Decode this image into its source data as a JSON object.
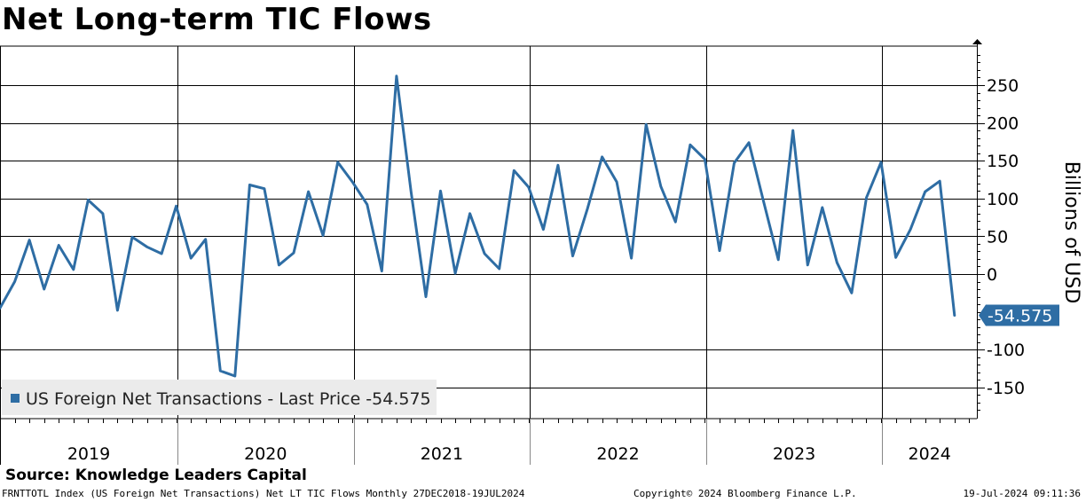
{
  "header": {
    "title": "Net Long-term TIC Flows"
  },
  "footer": {
    "source": "Source: Knowledge Leaders Capital",
    "ticker_info": "FRNTTOTL Index (US Foreign Net Transactions) Net LT TIC Flows  Monthly 27DEC2018-19JUL2024",
    "copyright": "Copyright© 2024 Bloomberg Finance L.P.",
    "timestamp": "19-Jul-2024 09:11:36"
  },
  "colors": {
    "series": "#2e6da4",
    "grid": "#000000",
    "legend_bg": "#ebebeb"
  },
  "chart_data": {
    "type": "line",
    "title": "Net Long-term TIC Flows",
    "ylabel": "Billions of USD",
    "xlabel": "",
    "ylim": [
      -190,
      300
    ],
    "yticks": [
      250,
      200,
      150,
      100,
      50,
      0,
      -100,
      -150
    ],
    "ytick_labels": [
      "250",
      "200",
      "150",
      "100",
      "50",
      "0",
      "-100",
      "-150"
    ],
    "grid": true,
    "year_labels": [
      "2019",
      "2020",
      "2021",
      "2022",
      "2023",
      "2024"
    ],
    "last_value_label": "-54.575",
    "legend": {
      "label": "US Foreign Net Transactions - Last Price -54.575",
      "placement": "bottom-left"
    },
    "series": [
      {
        "name": "US Foreign Net Transactions",
        "frequency": "monthly",
        "start": "2018-12",
        "values": [
          -45,
          -10,
          45,
          -20,
          38,
          6,
          98,
          80,
          -48,
          49,
          36,
          27,
          90,
          21,
          46,
          -128,
          -135,
          118,
          113,
          12,
          28,
          109,
          51,
          148,
          122,
          92,
          4,
          262,
          108,
          -30,
          110,
          1,
          80,
          27,
          7,
          137,
          115,
          59,
          144,
          24,
          86,
          155,
          122,
          21,
          198,
          116,
          69,
          171,
          152,
          31,
          147,
          174,
          96,
          19,
          190,
          12,
          88,
          15,
          -25,
          101,
          148,
          22,
          59,
          109,
          123,
          -54.575
        ]
      }
    ]
  }
}
